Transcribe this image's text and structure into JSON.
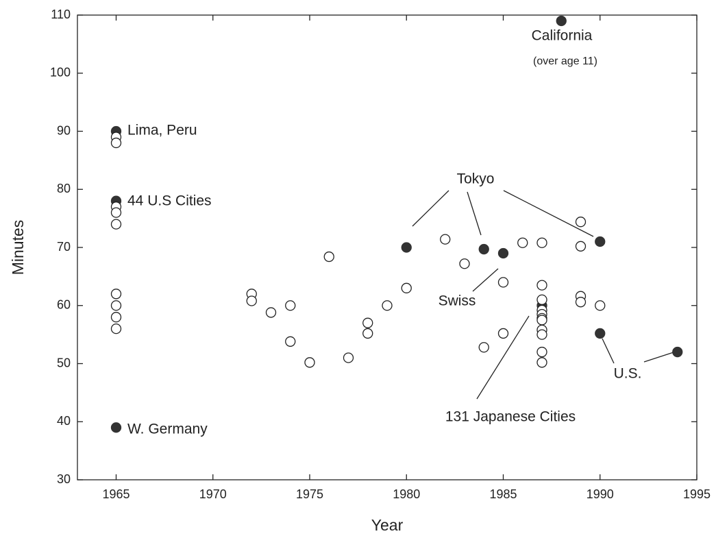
{
  "chart_data": {
    "type": "scatter",
    "x_label": "Year",
    "y_label": "Minutes",
    "xlim": [
      1963,
      1995
    ],
    "ylim": [
      30,
      110
    ],
    "xticks": [
      1965,
      1970,
      1975,
      1980,
      1985,
      1990,
      1995
    ],
    "yticks": [
      30,
      40,
      50,
      60,
      70,
      80,
      90,
      100,
      110
    ],
    "series": [
      {
        "color": "#333333",
        "filled": true,
        "x": [
          1965,
          1965,
          1965,
          1988,
          1980,
          1984,
          1985,
          1990,
          1987,
          1990,
          1994
        ],
        "values": [
          90,
          78,
          39,
          109,
          70,
          69.7,
          69,
          71,
          60,
          55.2,
          52
        ]
      },
      {
        "color": "#222222",
        "filled": false,
        "x": [
          1965,
          1965,
          1965,
          1965,
          1965,
          1965,
          1965,
          1965,
          1965,
          1972,
          1972,
          1973,
          1974,
          1974,
          1975,
          1976,
          1977,
          1978,
          1978,
          1979,
          1980,
          1982,
          1983,
          1984,
          1985,
          1985,
          1986,
          1987,
          1987,
          1987,
          1987,
          1987,
          1987,
          1987,
          1987,
          1987,
          1987,
          1987,
          1989,
          1989,
          1989,
          1989,
          1990
        ],
        "values": [
          89,
          88,
          77,
          76,
          74,
          62,
          60,
          58,
          56,
          62,
          60.8,
          58.8,
          60,
          53.8,
          50.2,
          68.4,
          51,
          57,
          55.2,
          60,
          63,
          71.4,
          67.2,
          52.8,
          64,
          55.2,
          70.8,
          70.8,
          63.5,
          61,
          59.2,
          58.5,
          57.8,
          57.5,
          55.8,
          55,
          52,
          50.2,
          74.4,
          70.2,
          61.6,
          60.6,
          60
        ]
      }
    ],
    "annotations": [
      "California",
      "(over age 11)",
      "Lima, Peru",
      "44 U.S Cities",
      "W. Germany",
      "Tokyo",
      "Swiss",
      "131 Japanese Cities",
      "U.S."
    ]
  }
}
